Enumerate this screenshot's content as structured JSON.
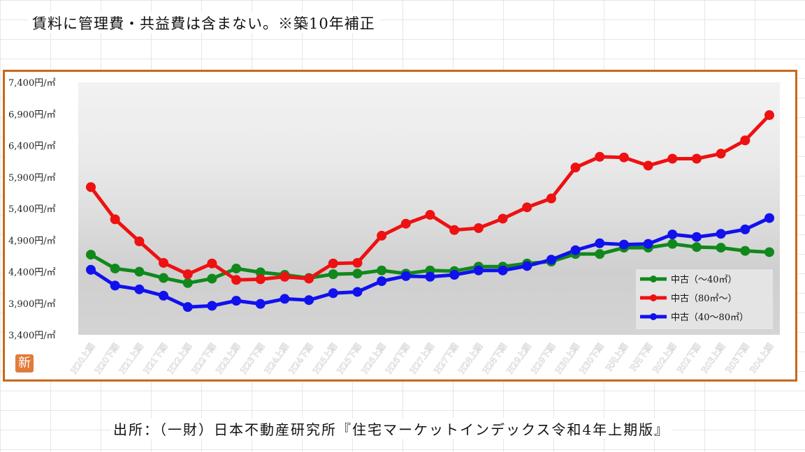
{
  "header": {
    "note": "賃料に管理費・共益費は含まない。※築10年補正"
  },
  "footer": {
    "source": "出所：（一財）日本不動産研究所『住宅マーケットインデックス令和4年上期版』"
  },
  "badge": {
    "text": "新"
  },
  "chart_data": {
    "type": "line",
    "ylim": [
      3400,
      7400
    ],
    "yticks": [
      3400,
      3900,
      4400,
      4900,
      5400,
      5900,
      6400,
      6900,
      7400
    ],
    "ytick_labels": [
      "3,400円/㎡",
      "3,900円/㎡",
      "4,400円/㎡",
      "4,900円/㎡",
      "5,400円/㎡",
      "5,900円/㎡",
      "6,400円/㎡",
      "6,900円/㎡",
      "7,400円/㎡"
    ],
    "categories": [
      "H20上期",
      "H20下期",
      "H21上期",
      "H21下期",
      "H22上期",
      "H22下期",
      "H23上期",
      "H23下期",
      "H24上期",
      "H24下期",
      "H25上期",
      "H25下期",
      "H26上期",
      "H26下期",
      "H27上期",
      "H27下期",
      "H28上期",
      "H28下期",
      "H29上期",
      "H29下期",
      "H30上期",
      "H30下期",
      "R元上期",
      "R元下期",
      "R02上期",
      "R02下期",
      "R03上期",
      "R03下期",
      "R04上期"
    ],
    "legend_position": "bottom-right",
    "series": [
      {
        "name": "中古（～40㎡）",
        "color": "#11881c",
        "values": [
          4670,
          4450,
          4400,
          4300,
          4220,
          4290,
          4450,
          4390,
          4350,
          4300,
          4360,
          4370,
          4420,
          4370,
          4420,
          4410,
          4480,
          4480,
          4530,
          4560,
          4680,
          4680,
          4780,
          4780,
          4840,
          4790,
          4780,
          4730,
          4710
        ]
      },
      {
        "name": "中古（80㎡～）",
        "color": "#ee1111",
        "values": [
          5740,
          5230,
          4880,
          4540,
          4360,
          4530,
          4270,
          4280,
          4320,
          4290,
          4530,
          4540,
          4970,
          5160,
          5300,
          5060,
          5090,
          5240,
          5420,
          5560,
          6050,
          6220,
          6210,
          6080,
          6190,
          6190,
          6270,
          6480,
          6880
        ]
      },
      {
        "name": "中古（40～80㎡）",
        "color": "#1111ee",
        "values": [
          4430,
          4180,
          4120,
          4020,
          3840,
          3860,
          3940,
          3890,
          3970,
          3950,
          4060,
          4080,
          4250,
          4330,
          4320,
          4350,
          4420,
          4420,
          4490,
          4590,
          4740,
          4850,
          4830,
          4840,
          4990,
          4950,
          5000,
          5070,
          5250
        ]
      }
    ]
  }
}
